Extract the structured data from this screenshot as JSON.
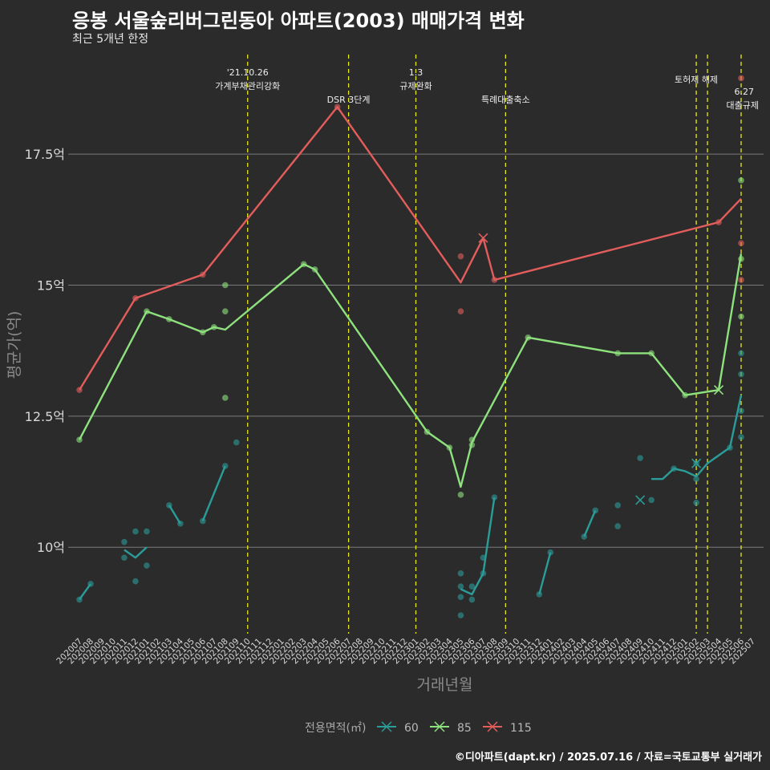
{
  "title": "응봉 서울숲리버그린동아 아파트(2003) 매매가격 변화",
  "subtitle": "최근 5개년 한정",
  "caption": "©디아파트(dapt.kr) / 2025.07.16 / 자료=국토교통부 실거래가",
  "colors": {
    "s60": "#2a9d99",
    "s85": "#8ee27d",
    "s115": "#e35d5b",
    "vline": "#e8e81c",
    "grid": "#7a7a7a",
    "background": "#2b2b2c"
  },
  "chart_data": {
    "type": "line",
    "xlabel": "거래년월",
    "ylabel": "평균가(억)",
    "ylim": [
      8.35,
      19.4
    ],
    "yticks": [
      10,
      12.5,
      15,
      17.5
    ],
    "ytick_labels": [
      "10억",
      "12.5억",
      "15억",
      "17.5억"
    ],
    "x": [
      "202007",
      "202008",
      "202009",
      "202010",
      "202011",
      "202012",
      "202101",
      "202102",
      "202103",
      "202104",
      "202105",
      "202106",
      "202107",
      "202108",
      "202109",
      "202110",
      "202111",
      "202112",
      "202201",
      "202202",
      "202203",
      "202204",
      "202205",
      "202206",
      "202207",
      "202208",
      "202209",
      "202210",
      "202211",
      "202212",
      "202301",
      "202302",
      "202303",
      "202304",
      "202305",
      "202306",
      "202307",
      "202308",
      "202309",
      "202310",
      "202311",
      "202312",
      "202401",
      "202402",
      "202403",
      "202404",
      "202405",
      "202406",
      "202407",
      "202408",
      "202409",
      "202410",
      "202411",
      "202412",
      "202501",
      "202502",
      "202503",
      "202504",
      "202505",
      "202506",
      "202507"
    ],
    "legend": {
      "title": "전용면적(㎡)",
      "placement": "bottom"
    },
    "series": [
      {
        "name": "60",
        "color": "#2a9d99",
        "line_segments": [
          [
            [
              "202007",
              9.0
            ],
            [
              "202008",
              9.3
            ]
          ],
          [
            [
              "202011",
              9.95
            ],
            [
              "202012",
              9.8
            ],
            [
              "202101",
              10.0
            ]
          ],
          [
            [
              "202103",
              10.8
            ],
            [
              "202104",
              10.45
            ]
          ],
          [
            [
              "202106",
              10.5
            ],
            [
              "202108",
              11.55
            ]
          ],
          [
            [
              "202305",
              9.2
            ],
            [
              "202306",
              9.1
            ],
            [
              "202307",
              9.5
            ],
            [
              "202308",
              10.95
            ]
          ],
          [
            [
              "202312",
              9.1
            ],
            [
              "202401",
              9.9
            ]
          ],
          [
            [
              "202404",
              10.2
            ],
            [
              "202405",
              10.7
            ]
          ],
          [
            [
              "202410",
              11.3
            ],
            [
              "202411",
              11.3
            ],
            [
              "202412",
              11.5
            ],
            [
              "202501",
              11.45
            ],
            [
              "202502",
              11.35
            ],
            [
              "202503",
              11.6
            ],
            [
              "202505",
              11.9
            ],
            [
              "202506",
              12.9
            ]
          ]
        ],
        "points": [
          [
            "202007",
            9.0
          ],
          [
            "202008",
            9.3
          ],
          [
            "202011",
            10.1
          ],
          [
            "202011",
            9.8
          ],
          [
            "202012",
            10.3
          ],
          [
            "202012",
            9.35
          ],
          [
            "202101",
            10.3
          ],
          [
            "202101",
            9.65
          ],
          [
            "202103",
            10.8
          ],
          [
            "202104",
            10.45
          ],
          [
            "202106",
            10.5
          ],
          [
            "202108",
            11.55
          ],
          [
            "202109",
            12.0
          ],
          [
            "202305",
            9.5
          ],
          [
            "202305",
            9.25
          ],
          [
            "202305",
            9.05
          ],
          [
            "202305",
            8.7
          ],
          [
            "202306",
            9.25
          ],
          [
            "202306",
            9.0
          ],
          [
            "202307",
            9.5
          ],
          [
            "202307",
            9.8
          ],
          [
            "202308",
            10.95
          ],
          [
            "202312",
            9.1
          ],
          [
            "202401",
            9.9
          ],
          [
            "202404",
            10.2
          ],
          [
            "202405",
            10.7
          ],
          [
            "202407",
            10.8
          ],
          [
            "202407",
            10.4
          ],
          [
            "202409",
            11.7
          ],
          [
            "202410",
            10.9
          ],
          [
            "202412",
            11.5
          ],
          [
            "202502",
            11.3
          ],
          [
            "202502",
            10.85
          ],
          [
            "202502",
            11.6
          ],
          [
            "202505",
            11.9
          ],
          [
            "202506",
            12.6
          ],
          [
            "202506",
            12.1
          ],
          [
            "202506",
            13.3
          ],
          [
            "202506",
            13.7
          ]
        ],
        "max_marks": [
          [
            "202409",
            10.9
          ],
          [
            "202502",
            11.6
          ]
        ]
      },
      {
        "name": "85",
        "color": "#8ee27d",
        "line_segments": [
          [
            [
              "202007",
              12.05
            ],
            [
              "202101",
              14.5
            ],
            [
              "202103",
              14.35
            ],
            [
              "202106",
              14.1
            ],
            [
              "202107",
              14.2
            ],
            [
              "202108",
              14.15
            ],
            [
              "202203",
              15.4
            ],
            [
              "202204",
              15.3
            ],
            [
              "202302",
              12.2
            ],
            [
              "202304",
              11.9
            ],
            [
              "202305",
              11.15
            ],
            [
              "202306",
              12.0
            ],
            [
              "202311",
              14.0
            ],
            [
              "202407",
              13.7
            ],
            [
              "202410",
              13.7
            ],
            [
              "202501",
              12.9
            ],
            [
              "202504",
              13.0
            ],
            [
              "202506",
              15.6
            ]
          ]
        ],
        "points": [
          [
            "202007",
            12.05
          ],
          [
            "202101",
            14.5
          ],
          [
            "202103",
            14.35
          ],
          [
            "202106",
            14.1
          ],
          [
            "202107",
            14.2
          ],
          [
            "202108",
            15.0
          ],
          [
            "202108",
            14.5
          ],
          [
            "202108",
            12.85
          ],
          [
            "202203",
            15.4
          ],
          [
            "202204",
            15.3
          ],
          [
            "202302",
            12.2
          ],
          [
            "202304",
            11.9
          ],
          [
            "202305",
            11.0
          ],
          [
            "202306",
            11.95
          ],
          [
            "202306",
            12.05
          ],
          [
            "202311",
            14.0
          ],
          [
            "202407",
            13.7
          ],
          [
            "202410",
            13.7
          ],
          [
            "202501",
            12.9
          ],
          [
            "202506",
            17.0
          ],
          [
            "202506",
            15.5
          ],
          [
            "202506",
            14.4
          ]
        ],
        "max_marks": [
          [
            "202504",
            13.0
          ]
        ]
      },
      {
        "name": "115",
        "color": "#e35d5b",
        "line_segments": [
          [
            [
              "202007",
              13.0
            ],
            [
              "202012",
              14.75
            ],
            [
              "202106",
              15.2
            ],
            [
              "202206",
              18.4
            ],
            [
              "202305",
              15.05
            ],
            [
              "202307",
              15.9
            ],
            [
              "202308",
              15.1
            ],
            [
              "202504",
              16.2
            ],
            [
              "202506",
              16.65
            ]
          ]
        ],
        "points": [
          [
            "202007",
            13.0
          ],
          [
            "202012",
            14.75
          ],
          [
            "202106",
            15.2
          ],
          [
            "202206",
            18.4
          ],
          [
            "202305",
            15.55
          ],
          [
            "202305",
            14.5
          ],
          [
            "202308",
            15.1
          ],
          [
            "202504",
            16.2
          ],
          [
            "202506",
            15.8
          ],
          [
            "202506",
            15.1
          ],
          [
            "202506",
            18.95
          ]
        ],
        "max_marks": [
          [
            "202307",
            15.9
          ]
        ]
      }
    ],
    "annotations": [
      {
        "x": "202110",
        "line1": "'21.10.26",
        "line2": "가계부채관리강화",
        "row": "high"
      },
      {
        "x": "202207",
        "line1": "DSR 3단계",
        "line2": "",
        "row": "low"
      },
      {
        "x": "202301",
        "line1": "1.3",
        "line2": "규제완화",
        "row": "high"
      },
      {
        "x": "202309",
        "line1": "특례대출축소",
        "line2": "",
        "row": "low"
      },
      {
        "x": "202502",
        "line1": "토허제 해제",
        "line2": "",
        "row": "mid"
      },
      {
        "x": "202503",
        "line1": "",
        "line2": "",
        "row": "none"
      },
      {
        "x": "202506",
        "line1": "6.27",
        "line2": "대출규제",
        "row": "right"
      }
    ]
  }
}
